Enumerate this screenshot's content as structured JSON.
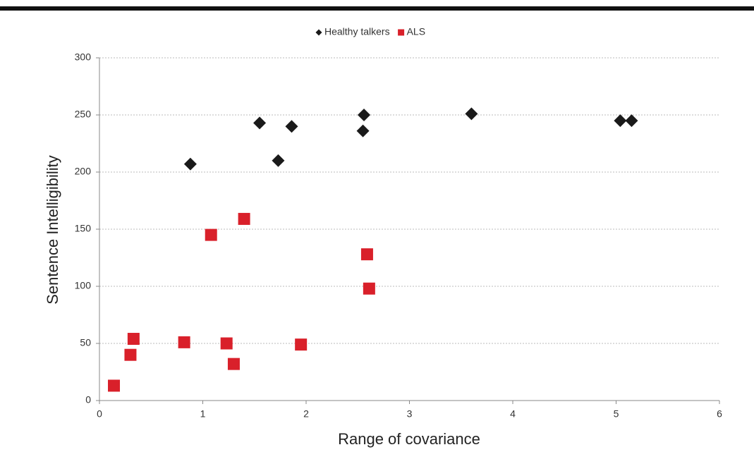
{
  "chart_data": {
    "type": "scatter",
    "x_label": "Range of covariance",
    "y_label": "Sentence Intelligibility",
    "xlim": [
      0,
      6
    ],
    "xticks": [
      0,
      1,
      2,
      3,
      4,
      5,
      6
    ],
    "ylim": [
      0,
      300
    ],
    "yticks": [
      0,
      50,
      100,
      150,
      200,
      250,
      300
    ],
    "grid": true,
    "legend": "top",
    "series": [
      {
        "name": "Healthy talkers",
        "color": "#1a1a1a",
        "marker": "diamond",
        "x": [
          0.88,
          1.55,
          1.73,
          1.86,
          2.56,
          2.55,
          3.6,
          5.04,
          5.15
        ],
        "values": [
          207,
          243,
          210,
          240,
          250,
          236,
          251,
          245,
          245
        ]
      },
      {
        "name": "ALS",
        "color": "#d9202a",
        "marker": "square",
        "x": [
          0.14,
          0.3,
          0.33,
          0.82,
          1.08,
          1.23,
          1.3,
          1.4,
          1.95,
          2.59,
          2.61
        ],
        "values": [
          13,
          40,
          54,
          51,
          145,
          50,
          32,
          159,
          49,
          128,
          98
        ]
      }
    ]
  }
}
